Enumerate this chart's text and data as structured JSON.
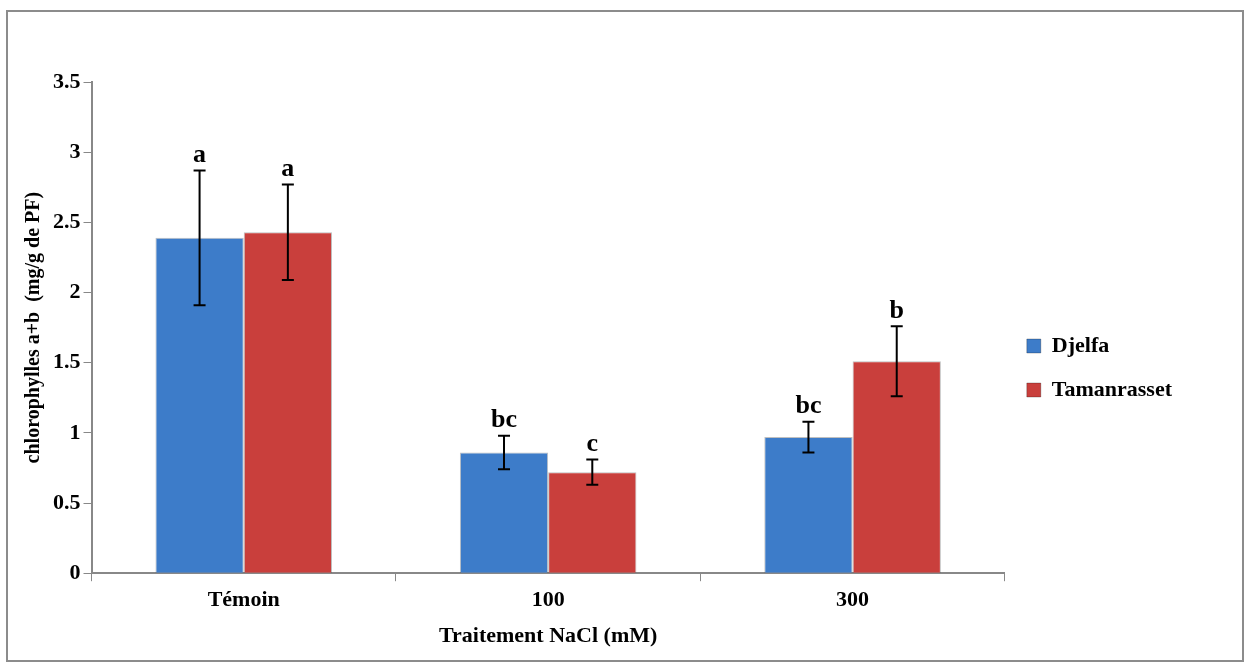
{
  "chart_data": {
    "type": "bar",
    "xlabel": "Traitement NaCl (mM)",
    "ylabel": "chlorophylles a+b  (mg/g de PF)",
    "categories": [
      "Témoin",
      "100",
      "300"
    ],
    "series": [
      {
        "name": "Djelfa",
        "color": "#3d7cc9",
        "values": [
          2.39,
          0.86,
          0.97
        ],
        "errors": [
          0.48,
          0.12,
          0.11
        ]
      },
      {
        "name": "Tamanrasset",
        "color": "#c93f3c",
        "values": [
          2.43,
          0.72,
          1.51
        ],
        "errors": [
          0.34,
          0.09,
          0.25
        ]
      }
    ],
    "ylim": [
      0,
      3.5
    ],
    "yticks": [
      0,
      0.5,
      1,
      1.5,
      2,
      2.5,
      3,
      3.5
    ],
    "grid": false,
    "legend": "right",
    "annotations": [
      "a",
      "a",
      "bc",
      "c",
      "bc",
      "b"
    ]
  }
}
